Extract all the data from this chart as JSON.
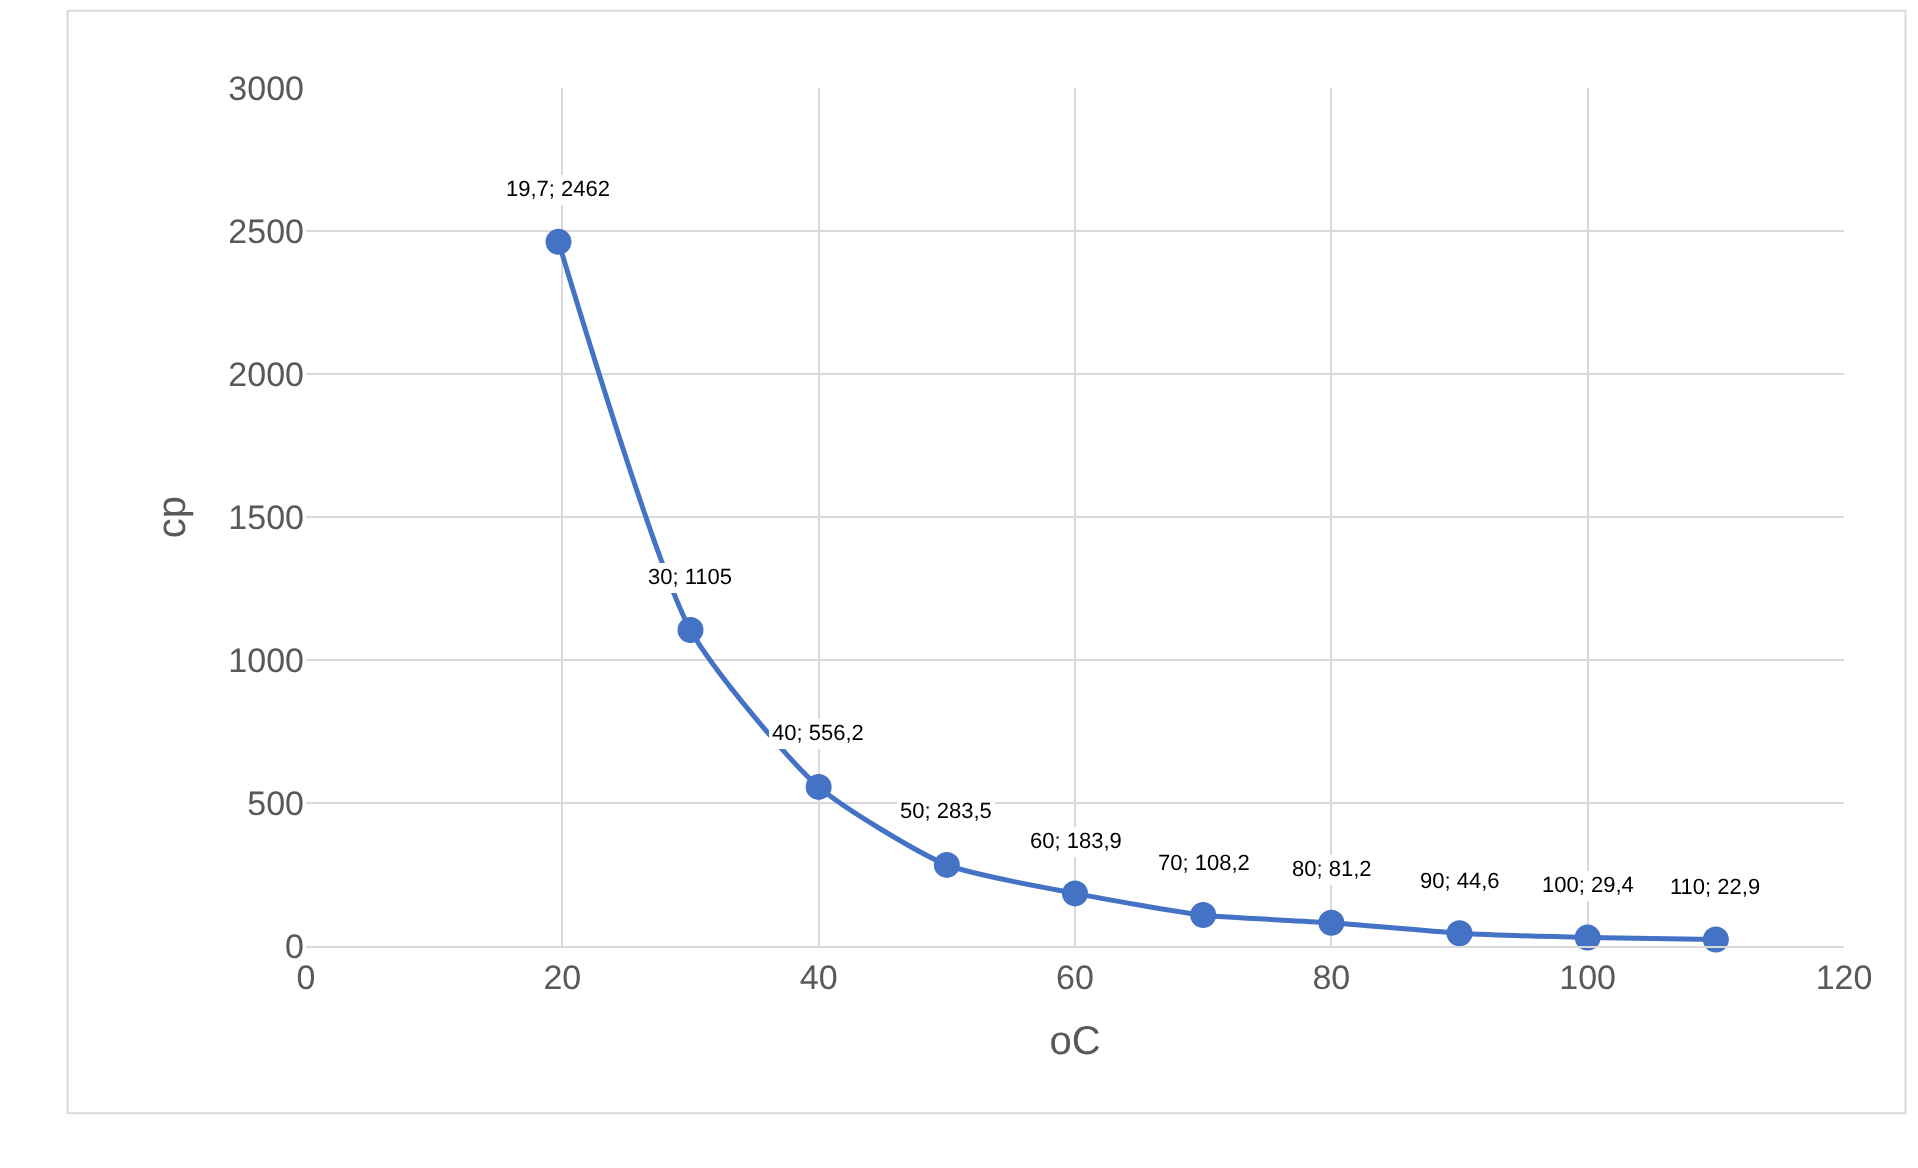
{
  "chart_data": {
    "type": "line",
    "xlabel": "oC",
    "ylabel": "cp",
    "x": [
      19.7,
      30,
      40,
      50,
      60,
      70,
      80,
      90,
      100,
      110
    ],
    "series": [
      {
        "color": "#4472c4",
        "values": [
          2462,
          1105,
          556.2,
          283.5,
          183.9,
          108.2,
          81.2,
          44.6,
          29.4,
          22.9
        ],
        "value_labels": [
          "19,7; 2462",
          "30; 1105",
          "40; 556,2",
          "50; 283,5",
          "60; 183,9",
          "70; 108,2",
          "80; 81,2",
          "90; 44,6",
          "100; 29,4",
          "110; 22,9"
        ]
      }
    ],
    "xlim": [
      0,
      120
    ],
    "xticks": [
      0,
      20,
      40,
      60,
      80,
      100,
      120
    ],
    "ylim": [
      0,
      3000
    ],
    "yticks": [
      0,
      500,
      1000,
      1500,
      2000,
      2500,
      3000
    ],
    "grid": true,
    "marker": "circle",
    "line_style": "solid"
  }
}
